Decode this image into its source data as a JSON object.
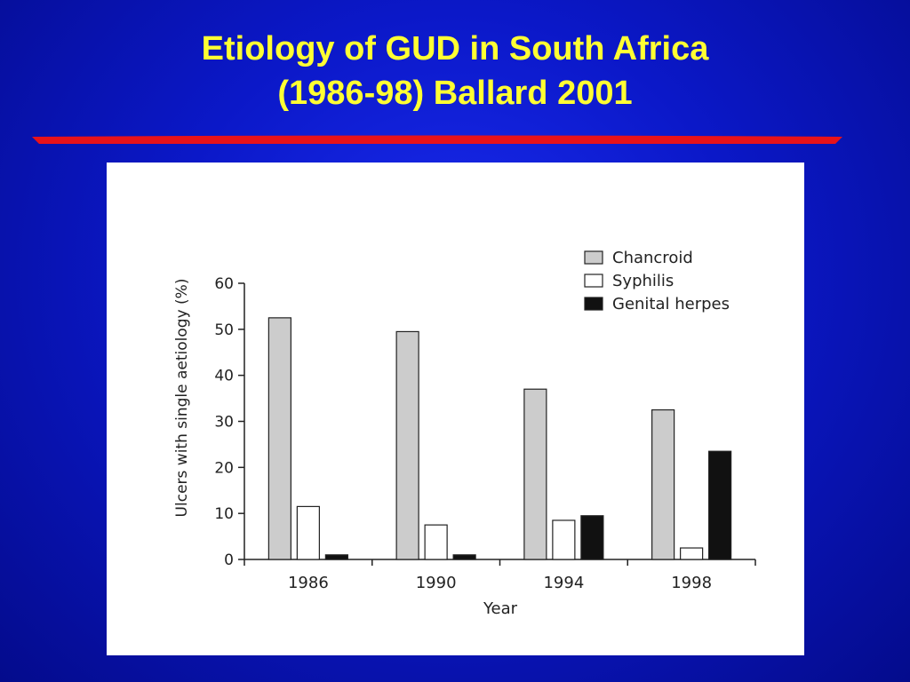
{
  "slide": {
    "title_line1": "Etiology of GUD in South Africa",
    "title_line2": "(1986-98) Ballard 2001",
    "title_color": "#ffff33",
    "accent_bar_color": "#e8121a"
  },
  "chart_data": {
    "type": "bar",
    "title": "",
    "xlabel": "Year",
    "ylabel": "Ulcers with single aetiology (%)",
    "categories": [
      "1986",
      "1990",
      "1994",
      "1998"
    ],
    "ylim": [
      0,
      60
    ],
    "yticks": [
      0,
      10,
      20,
      30,
      40,
      50,
      60
    ],
    "grid": false,
    "legend_position": "top-right",
    "series": [
      {
        "name": "Chancroid",
        "color": "#cccccc",
        "values": [
          52.5,
          49.5,
          37,
          32.5
        ]
      },
      {
        "name": "Syphilis",
        "color": "#ffffff",
        "values": [
          11.5,
          7.5,
          8.5,
          2.5
        ]
      },
      {
        "name": "Genital herpes",
        "color": "#111111",
        "values": [
          1,
          1,
          9.5,
          23.5
        ]
      }
    ]
  }
}
